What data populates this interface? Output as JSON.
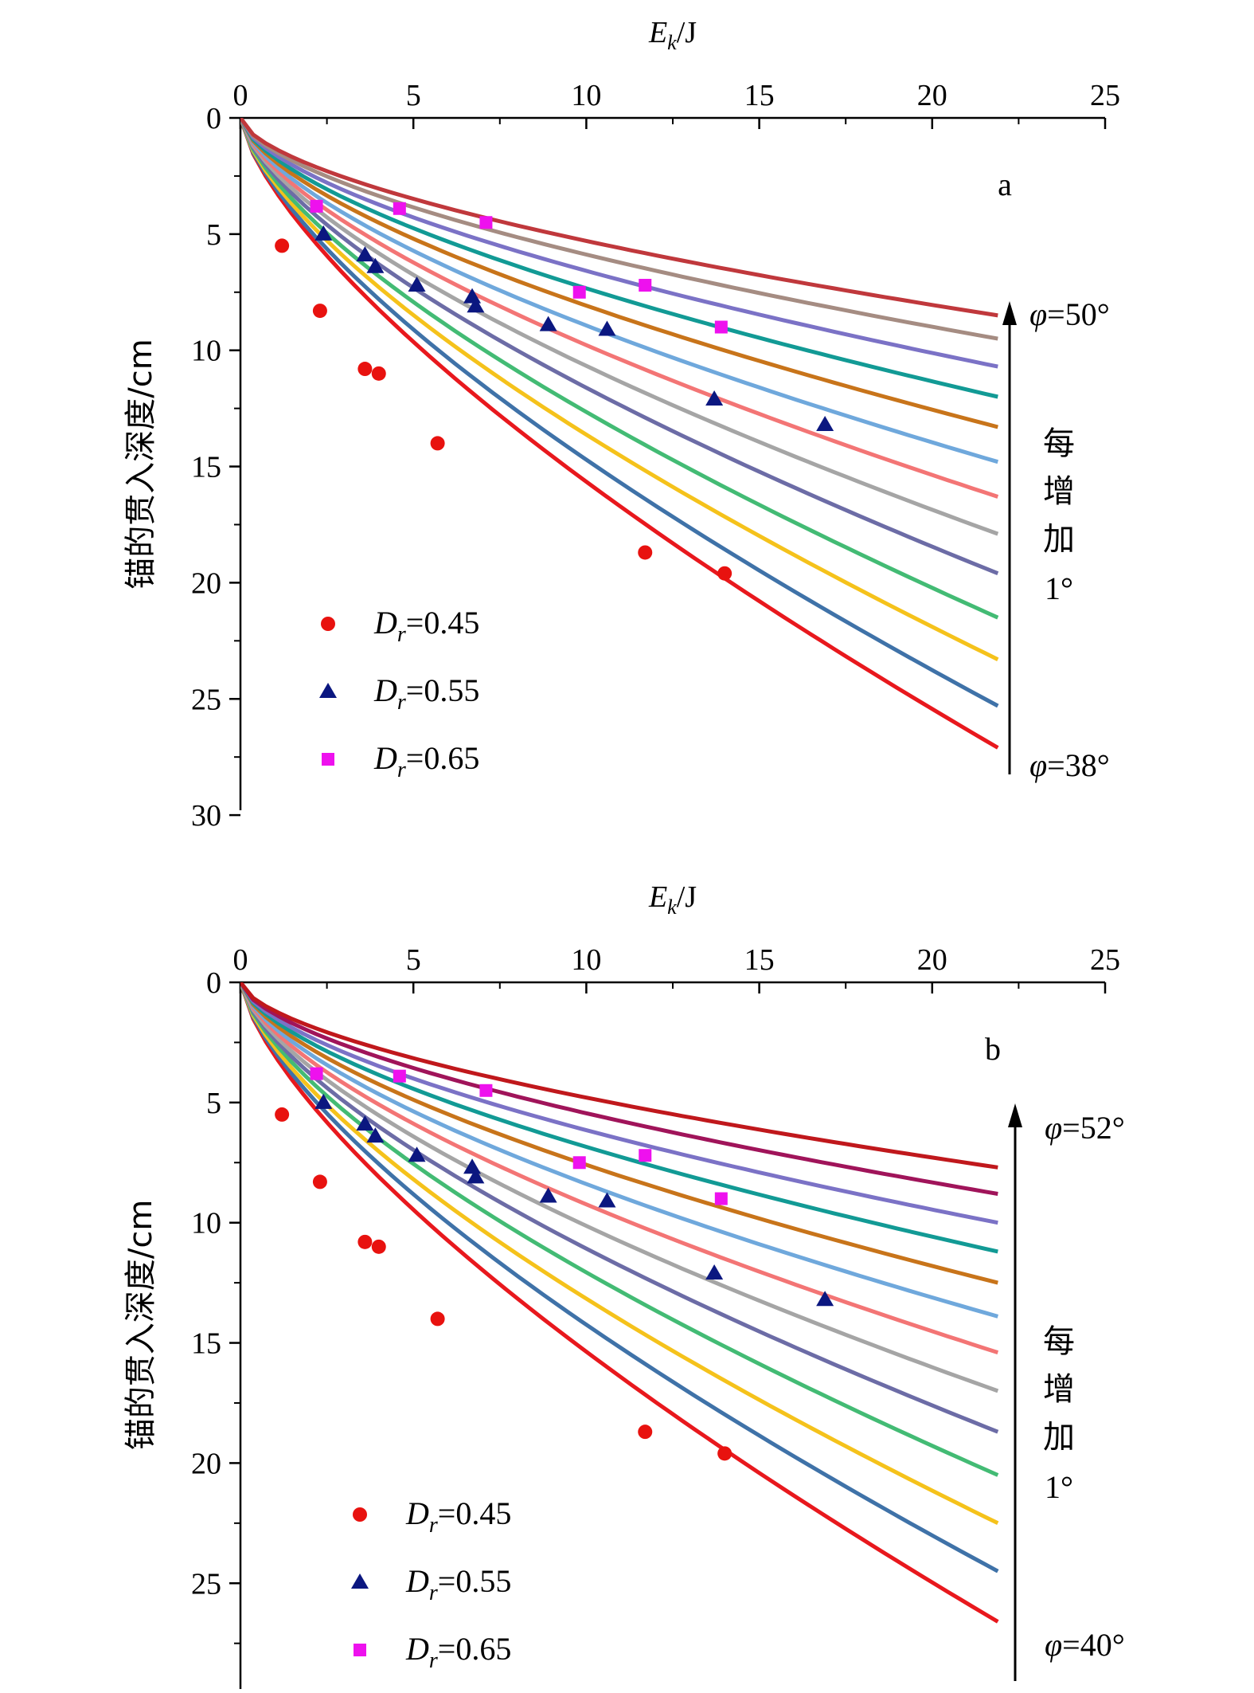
{
  "chart_data": [
    {
      "type": "line",
      "panel_label": "a",
      "xlabel_main": "E",
      "xlabel_sub": "k",
      "xlabel_unit": "/J",
      "ylabel": "锚的贯入深度/cm",
      "xlim": [
        0,
        25
      ],
      "ylim": [
        0,
        30
      ],
      "y_inverted": true,
      "x_axis_position": "top",
      "x_ticks": [
        "0",
        "5",
        "10",
        "15",
        "20",
        "25"
      ],
      "y_ticks": [
        "0",
        "5",
        "10",
        "15",
        "20",
        "25",
        "30"
      ],
      "line_colors": [
        "#e8181d",
        "#3f72a8",
        "#f5c21b",
        "#43bb74",
        "#6c6ca6",
        "#a5a5a5",
        "#f37575",
        "#6fa8dc",
        "#c8741a",
        "#129a95",
        "#7b72c6",
        "#a58c82",
        "#c0383c"
      ],
      "curves_end_depth": [
        27.1,
        25.3,
        23.3,
        21.5,
        19.6,
        17.9,
        16.3,
        14.8,
        13.3,
        12.0,
        10.7,
        9.5,
        8.5
      ],
      "curves_end_energy": 21.9,
      "annotation_top": "φ=50°",
      "annotation_bottom": "φ=38°",
      "annotation_mid": [
        "每",
        "增",
        "加",
        "1°"
      ],
      "legend": [
        "D",
        "r",
        "=0.45",
        "=0.55",
        "=0.65"
      ],
      "series": [
        {
          "name": "Dr=0.45",
          "marker": "circle",
          "color": "#e8120f",
          "x": [
            1.2,
            2.3,
            3.6,
            4.0,
            5.7,
            11.7,
            14.0
          ],
          "y": [
            5.5,
            8.3,
            10.8,
            11.0,
            14.0,
            18.7,
            19.6
          ]
        },
        {
          "name": "Dr=0.55",
          "marker": "triangle",
          "color": "#0b1780",
          "x": [
            2.4,
            3.6,
            3.9,
            5.1,
            6.7,
            6.8,
            8.9,
            10.6,
            13.7,
            16.9
          ],
          "y": [
            5.0,
            5.9,
            6.4,
            7.2,
            7.7,
            8.1,
            8.9,
            9.1,
            12.1,
            13.2
          ]
        },
        {
          "name": "Dr=0.65",
          "marker": "square",
          "color": "#ee11ee",
          "x": [
            2.2,
            4.6,
            7.1,
            9.8,
            11.7,
            13.9
          ],
          "y": [
            3.8,
            3.9,
            4.5,
            7.5,
            7.2,
            9.0
          ]
        }
      ]
    },
    {
      "type": "line",
      "panel_label": "b",
      "xlabel_main": "E",
      "xlabel_sub": "k",
      "xlabel_unit": "/J",
      "ylabel": "锚的贯入深度/cm",
      "xlim": [
        0,
        25
      ],
      "ylim": [
        0,
        28.5
      ],
      "y_inverted": true,
      "x_axis_position": "top",
      "x_ticks": [
        "0",
        "5",
        "10",
        "15",
        "20",
        "25"
      ],
      "y_ticks": [
        "0",
        "5",
        "10",
        "15",
        "20",
        "25"
      ],
      "line_colors": [
        "#e8181d",
        "#3f72a8",
        "#f5c21b",
        "#43bb74",
        "#6c6ca6",
        "#a5a5a5",
        "#f37575",
        "#6fa8dc",
        "#c8741a",
        "#129a95",
        "#7b72c6",
        "#a0145a",
        "#c0181c"
      ],
      "curves_end_depth": [
        26.6,
        24.5,
        22.5,
        20.5,
        18.7,
        17.0,
        15.4,
        13.9,
        12.5,
        11.2,
        10.0,
        8.8,
        7.7
      ],
      "curves_end_energy": 21.9,
      "annotation_top": "φ=52°",
      "annotation_bottom": "φ=40°",
      "annotation_mid": [
        "每",
        "增",
        "加",
        "1°"
      ],
      "legend": [
        "D",
        "r",
        "=0.45",
        "=0.55",
        "=0.65"
      ],
      "series": [
        {
          "name": "Dr=0.45",
          "marker": "circle",
          "color": "#e8120f",
          "x": [
            1.2,
            2.3,
            3.6,
            4.0,
            5.7,
            11.7,
            14.0
          ],
          "y": [
            5.5,
            8.3,
            10.8,
            11.0,
            14.0,
            18.7,
            19.6
          ]
        },
        {
          "name": "Dr=0.55",
          "marker": "triangle",
          "color": "#0b1780",
          "x": [
            2.4,
            3.6,
            3.9,
            5.1,
            6.7,
            6.8,
            8.9,
            10.6,
            13.7,
            16.9
          ],
          "y": [
            5.0,
            5.9,
            6.4,
            7.2,
            7.7,
            8.1,
            8.9,
            9.1,
            12.1,
            13.2
          ]
        },
        {
          "name": "Dr=0.65",
          "marker": "square",
          "color": "#ee11ee",
          "x": [
            2.2,
            4.6,
            7.1,
            9.8,
            11.7,
            13.9
          ],
          "y": [
            3.8,
            3.9,
            4.5,
            7.5,
            7.2,
            9.0
          ]
        }
      ]
    }
  ]
}
